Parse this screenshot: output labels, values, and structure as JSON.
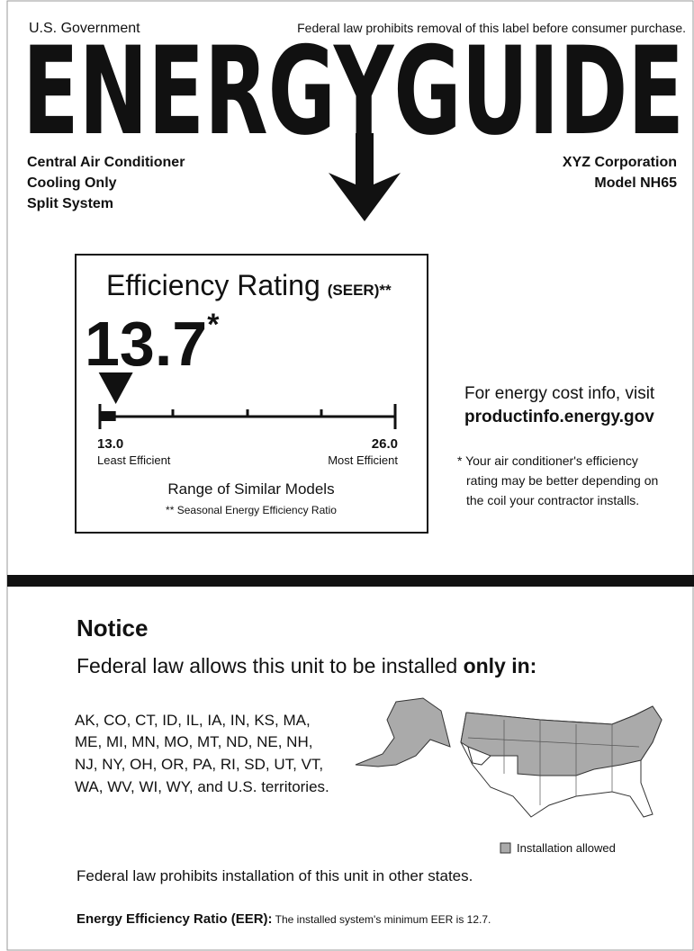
{
  "header": {
    "left": "U.S. Government",
    "right": "Federal law prohibits removal of this label before consumer purchase.",
    "logo": "ENERGYGUIDE"
  },
  "product": [
    "Central Air Conditioner",
    "Cooling Only",
    "Split System"
  ],
  "maker": [
    "XYZ Corporation",
    "Model NH65"
  ],
  "rating": {
    "title": "Efficiency Rating",
    "unit": "(SEER)**",
    "value": 13.7,
    "asterisk": "*",
    "scale": {
      "min": {
        "value": 13,
        "label": "13.0"
      },
      "max": {
        "value": 26,
        "label": "26.0"
      },
      "min_caption": "Least Efficient",
      "max_caption": "Most Efficient"
    },
    "range_caption": "Range of Similar Models",
    "footnote": "** Seasonal Energy Efficiency Ratio"
  },
  "cost_info": [
    "For energy cost info, visit",
    "productinfo.energy.gov"
  ],
  "coil_note": [
    "* Your air conditioner's efficiency",
    "rating may be better depending on",
    "the coil your contractor installs."
  ],
  "notice": {
    "title": "Notice",
    "line": "Federal law allows this unit to be installed ",
    "line_bold": "only in:",
    "states": [
      "AK, CO, CT, ID, IL, IA, IN, KS, MA,",
      "ME, MI, MN, MO, MT, ND, NE, NH,",
      "NJ, NY, OH, OR, PA, RI, SD, UT, VT,",
      "WA, WV, WI, WY, and U.S. territories."
    ],
    "legend": "Installation allowed",
    "prohibition": "Federal law prohibits installation of this unit in other states.",
    "eer_label": "Energy Efficiency Ratio (EER):",
    "eer_text": " The installed system's minimum EER is 12.7."
  }
}
